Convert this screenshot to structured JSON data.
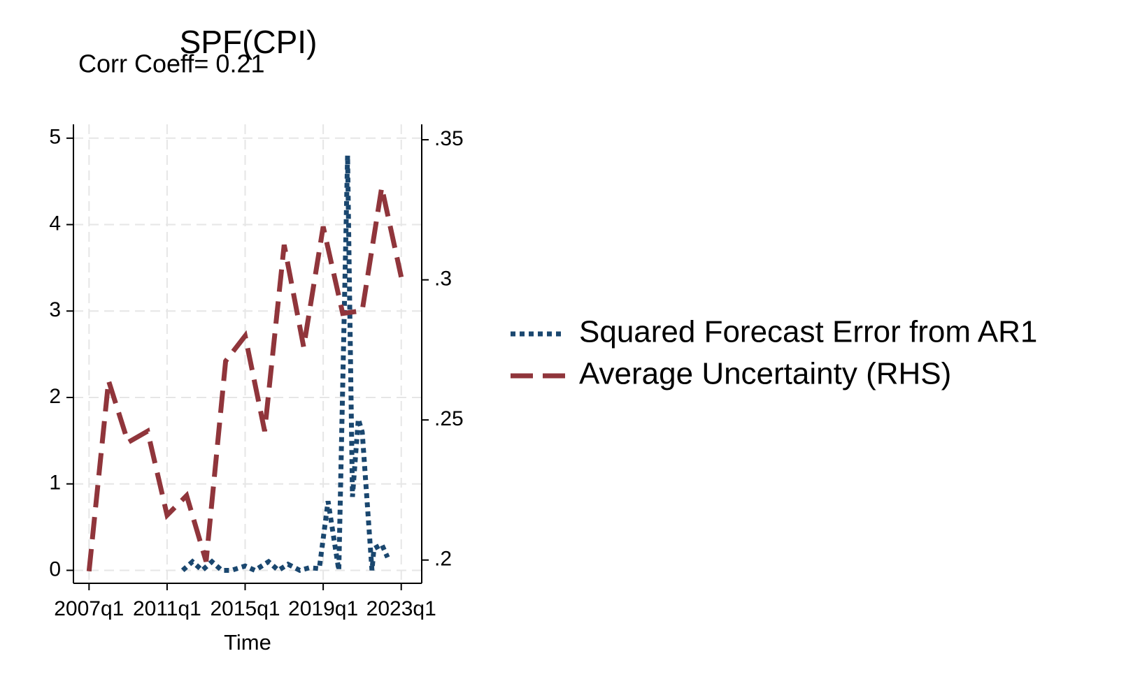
{
  "chart_data": {
    "type": "line",
    "title": "SPF(CPI)",
    "subtitle": "Corr Coeff= 0.21",
    "x_label": "Time",
    "grid": true,
    "legend": "right",
    "xlim": [
      2006.2,
      2024.05
    ],
    "xticks": [
      {
        "value": 2007,
        "label": "2007q1"
      },
      {
        "value": 2011,
        "label": "2011q1"
      },
      {
        "value": 2015,
        "label": "2015q1"
      },
      {
        "value": 2019,
        "label": "2019q1"
      },
      {
        "value": 2023,
        "label": "2023q1"
      }
    ],
    "ylim": [
      -0.15,
      5.16
    ],
    "yticks": [
      0,
      1,
      2,
      3,
      4,
      5
    ],
    "y2lim": [
      0.1917,
      0.3555
    ],
    "y2ticks": [
      {
        "value": 0.2,
        "label": ".2"
      },
      {
        "value": 0.25,
        "label": ".25"
      },
      {
        "value": 0.3,
        "label": ".3"
      },
      {
        "value": 0.35,
        "label": ".35"
      }
    ],
    "series": [
      {
        "name": "Squared Forecast Error from AR1",
        "color": "#1a476f",
        "style": "dotted",
        "x": [
          2011.8,
          2012.3,
          2012.8,
          2013.3,
          2013.8,
          2014.3,
          2015.0,
          2015.5,
          2016.2,
          2016.7,
          2017.2,
          2017.8,
          2018.3,
          2018.8,
          2019.25,
          2019.8,
          2020.25,
          2020.5,
          2020.8,
          2021.0,
          2021.5,
          2021.6,
          2022.0,
          2022.3
        ],
        "values": [
          0,
          0.1,
          0,
          0.1,
          0,
          0,
          0.05,
          0,
          0.1,
          0,
          0.07,
          0,
          0.03,
          0.02,
          0.8,
          0,
          4.8,
          0.85,
          1.75,
          1.6,
          0,
          0.25,
          0.3,
          0.15
        ]
      },
      {
        "name": "Average Uncertainty (RHS)",
        "color": "#90353b",
        "style": "dashed",
        "axis": "y2",
        "x": [
          2007,
          2008,
          2009,
          2010,
          2011,
          2012,
          2013,
          2014,
          2015,
          2016,
          2017,
          2018,
          2019,
          2020,
          2021,
          2022,
          2023
        ],
        "values": [
          0.196,
          0.264,
          0.242,
          0.246,
          0.216,
          0.223,
          0.1995,
          0.271,
          0.28,
          0.246,
          0.3125,
          0.276,
          0.319,
          0.288,
          0.289,
          0.333,
          0.301
        ]
      }
    ]
  }
}
